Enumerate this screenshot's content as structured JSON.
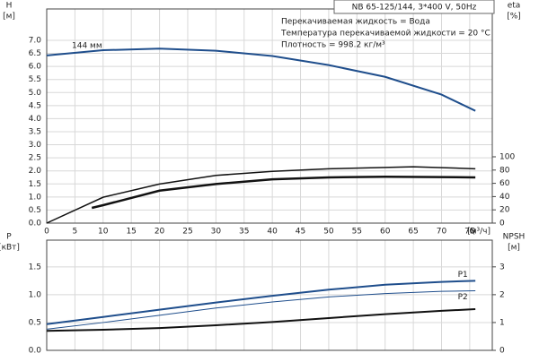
{
  "chart_data": [
    {
      "type": "line",
      "title": "NB 65-125/144, 3*400 V, 50Hz",
      "notes": [
        "Перекачиваемая жидкость = Вода",
        "Температура перекачиваемой жидкости = 20 °C",
        "Плотность = 998.2 кг/м³"
      ],
      "ylabel": [
        "H",
        "[м]"
      ],
      "y2label": [
        "eta",
        "[%]"
      ],
      "xlabel": [
        "Q",
        "[м³/ч]"
      ],
      "xlim": [
        0,
        79
      ],
      "xticks": [
        0,
        5,
        10,
        15,
        20,
        25,
        30,
        35,
        40,
        45,
        50,
        55,
        60,
        65,
        70,
        75
      ],
      "ylim": [
        0,
        8.2
      ],
      "yticks": [
        {
          "value": 0,
          "label": "0.0"
        },
        0.5,
        {
          "value": 1,
          "label": "1.0"
        },
        1.5,
        {
          "value": 2,
          "label": "2.0"
        },
        2.5,
        {
          "value": 3,
          "label": "3.0"
        },
        3.5,
        {
          "value": 4,
          "label": "4.0"
        },
        4.5,
        {
          "value": 5,
          "label": "5.0"
        },
        5.5,
        {
          "value": 6,
          "label": "6.0"
        },
        6.5,
        {
          "value": 7,
          "label": "7.0"
        }
      ],
      "y2lim": [
        0,
        323
      ],
      "y2ticks": [
        0,
        20,
        40,
        60,
        80,
        100
      ],
      "grid": true,
      "series": [
        {
          "name": "144 мм",
          "color": "#1f4e8c",
          "linewidth": 2,
          "x": [
            0,
            10,
            20,
            30,
            40,
            50,
            60,
            70,
            76
          ],
          "values": [
            6.42,
            6.62,
            6.68,
            6.6,
            6.4,
            6.05,
            5.6,
            4.92,
            4.3
          ]
        },
        {
          "color": "#111111",
          "linewidth": 1.5,
          "axis": "y2",
          "x": [
            0,
            10,
            20,
            30,
            40,
            50,
            60,
            65,
            76
          ],
          "values": [
            0,
            39,
            59,
            72,
            78,
            82,
            84,
            85,
            82
          ]
        },
        {
          "color": "#111111",
          "linewidth": 2.5,
          "axis": "y2",
          "x": [
            8,
            10,
            20,
            30,
            40,
            50,
            60,
            76
          ],
          "values": [
            23,
            27,
            49,
            59,
            66,
            69,
            70,
            69
          ]
        }
      ]
    },
    {
      "type": "line",
      "ylabel": [
        "P",
        "[кВт]"
      ],
      "y2label": [
        "NPSH",
        "[м]"
      ],
      "xlim": [
        0,
        79
      ],
      "xticks": [
        0,
        5,
        10,
        15,
        20,
        25,
        30,
        35,
        40,
        45,
        50,
        55,
        60,
        65,
        70,
        75
      ],
      "ylim": [
        0,
        1.98
      ],
      "yticks": [
        {
          "value": 0,
          "label": "0.0"
        },
        0.5,
        {
          "value": 1,
          "label": "1.0"
        },
        1.5
      ],
      "y2lim": [
        0,
        3.96
      ],
      "y2ticks": [
        0,
        1,
        2,
        3
      ],
      "grid": true,
      "series": [
        {
          "name": "P1",
          "color": "#1f4e8c",
          "linewidth": 2,
          "x": [
            0,
            10,
            20,
            30,
            40,
            50,
            60,
            70,
            76
          ],
          "values": [
            0.47,
            0.6,
            0.73,
            0.86,
            0.98,
            1.09,
            1.18,
            1.23,
            1.25
          ]
        },
        {
          "name": "P2",
          "color": "#1f4e8c",
          "linewidth": 1,
          "x": [
            0,
            10,
            20,
            30,
            40,
            50,
            60,
            70,
            76
          ],
          "values": [
            0.38,
            0.5,
            0.63,
            0.76,
            0.87,
            0.96,
            1.02,
            1.06,
            1.07
          ]
        },
        {
          "color": "#111111",
          "linewidth": 2,
          "axis": "y2",
          "x": [
            0,
            10,
            20,
            30,
            40,
            50,
            60,
            70,
            76
          ],
          "values": [
            0.7,
            0.74,
            0.8,
            0.9,
            1.02,
            1.16,
            1.3,
            1.42,
            1.48
          ]
        }
      ]
    }
  ]
}
